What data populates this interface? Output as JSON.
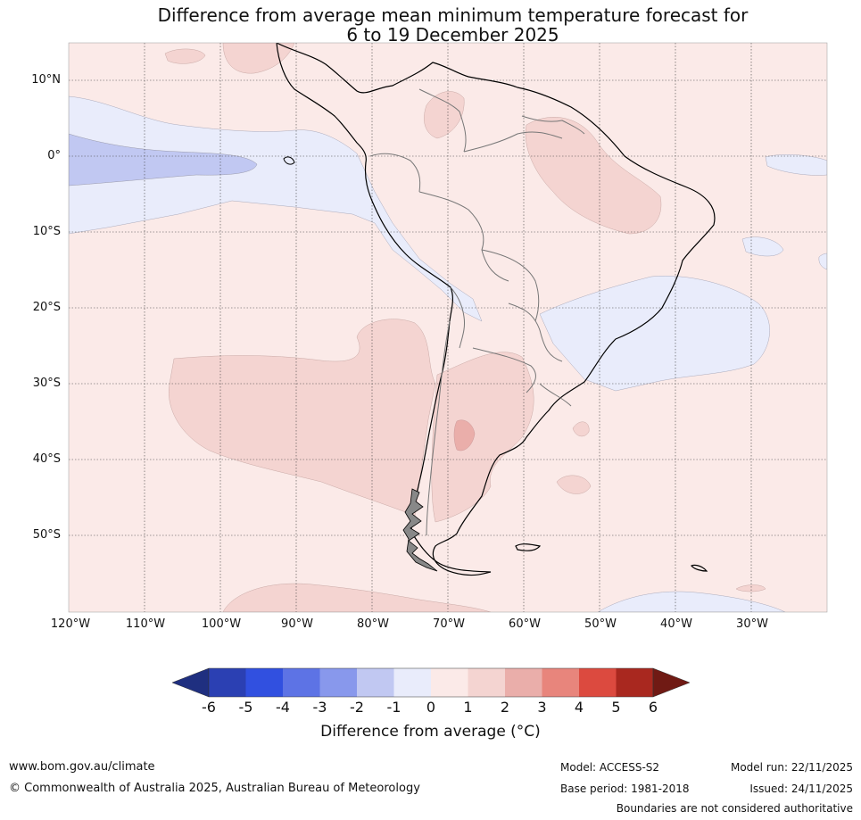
{
  "title": {
    "line1": "Difference from average mean minimum temperature forecast for",
    "line2": "6 to 19 December 2025"
  },
  "map": {
    "region": "South America",
    "latitude_labels": [
      "10°N",
      "0°",
      "10°S",
      "20°S",
      "30°S",
      "40°S",
      "50°S"
    ],
    "longitude_labels": [
      "120°W",
      "110°W",
      "100°W",
      "90°W",
      "80°W",
      "70°W",
      "60°W",
      "50°W",
      "40°W",
      "30°W"
    ],
    "colors": {
      "ocean_base": "#fbeae8",
      "anomaly_0_to_1": "#fbeae8",
      "anomaly_1_to_2": "#f4d4d1",
      "anomaly_2_to_3": "#eaaeaa",
      "anomaly_minus1_to_0": "#e9ecfb",
      "anomaly_minus2_to_minus1": "#c1c8f2",
      "coastline": "#000000",
      "borders": "#777777"
    }
  },
  "colorbar": {
    "ticks": [
      "-6",
      "-5",
      "-4",
      "-3",
      "-2",
      "-1",
      "0",
      "1",
      "2",
      "3",
      "4",
      "5",
      "6"
    ],
    "colors": [
      "#1f2f80",
      "#2b40b3",
      "#3150e0",
      "#5d73e5",
      "#8898ec",
      "#c1c8f2",
      "#e9ecfb",
      "#fbeae8",
      "#f4d4d1",
      "#eaaeaa",
      "#e8857c",
      "#dc4a3f",
      "#a9281f",
      "#701a14"
    ],
    "label": "Difference from average (°C)"
  },
  "footer": {
    "website": "www.bom.gov.au/climate",
    "copyright": "© Commonwealth of Australia 2025, Australian Bureau of Meteorology",
    "model": "Model: ACCESS-S2",
    "base_period": "Base period: 1981-2018",
    "model_run": "Model run: 22/11/2025",
    "issued": "Issued: 24/11/2025",
    "disclaimer": "Boundaries are not considered authoritative"
  }
}
